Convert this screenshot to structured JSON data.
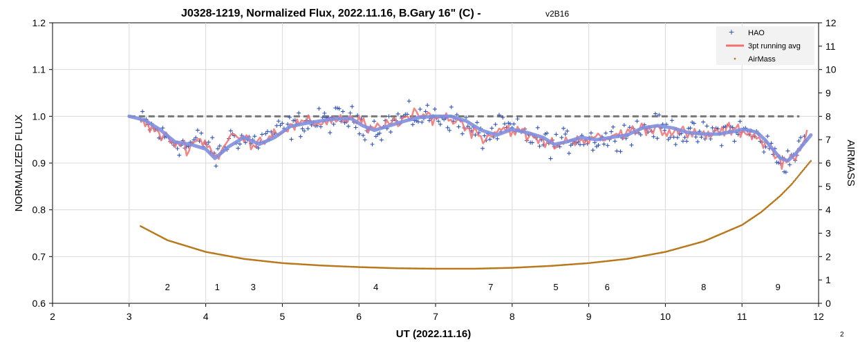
{
  "chart_data": {
    "type": "scatter",
    "title": "J0328-1219, Normalized Flux, 2022.11.16, B.Gary 16\" (C) -",
    "version": "v2B16",
    "xlabel": "UT (2022.11.16)",
    "ylabel": "NORMALIZED FLUX",
    "y2label": "AIRMASS",
    "xlim": [
      2,
      12
    ],
    "ylim": [
      0.6,
      1.2
    ],
    "y2lim": [
      0,
      12
    ],
    "x_ticks": [
      "2",
      "3",
      "4",
      "5",
      "6",
      "7",
      "8",
      "9",
      "10",
      "11",
      "12"
    ],
    "y_ticks": [
      "0.6",
      "0.7",
      "0.8",
      "0.9",
      "1.0",
      "1.1",
      "1.2"
    ],
    "y2_ticks": [
      "0",
      "1",
      "2",
      "3",
      "4",
      "5",
      "6",
      "7",
      "8",
      "9",
      "10",
      "11",
      "12"
    ],
    "grid": true,
    "legend_position": "top-right",
    "legend": [
      "HAO",
      "3pt running avg",
      "AirMass"
    ],
    "reference_line": {
      "y": 1.0,
      "x_range": [
        3.0,
        11.75
      ]
    },
    "series": [
      {
        "name": "HAO",
        "kind": "markers",
        "color": "#3355bb",
        "noise": 0.04,
        "x": [
          3.15,
          3.3,
          3.45,
          3.6,
          3.75,
          3.9,
          4.05,
          4.12,
          4.2,
          4.35,
          4.5,
          4.65,
          4.8,
          4.95,
          5.1,
          5.25,
          5.4,
          5.55,
          5.7,
          5.85,
          6.0,
          6.15,
          6.3,
          6.45,
          6.6,
          6.75,
          6.9,
          7.05,
          7.2,
          7.35,
          7.5,
          7.65,
          7.8,
          7.95,
          8.1,
          8.25,
          8.4,
          8.55,
          8.7,
          8.85,
          9.0,
          9.15,
          9.3,
          9.45,
          9.6,
          9.75,
          9.9,
          10.05,
          10.2,
          10.35,
          10.5,
          10.65,
          10.8,
          10.95,
          11.1,
          11.25,
          11.4,
          11.5,
          11.6,
          11.75,
          11.85
        ],
        "y": [
          0.99,
          0.975,
          0.955,
          0.945,
          0.935,
          0.95,
          0.94,
          0.91,
          0.925,
          0.96,
          0.95,
          0.945,
          0.955,
          0.97,
          0.975,
          0.985,
          0.985,
          0.99,
          0.995,
          0.995,
          0.99,
          0.97,
          0.975,
          0.99,
          0.995,
          1.0,
          1.0,
          1.0,
          0.995,
          0.985,
          0.965,
          0.955,
          0.97,
          0.975,
          0.965,
          0.955,
          0.945,
          0.94,
          0.945,
          0.955,
          0.95,
          0.95,
          0.955,
          0.965,
          0.97,
          0.975,
          0.975,
          0.97,
          0.965,
          0.96,
          0.96,
          0.965,
          0.97,
          0.97,
          0.965,
          0.95,
          0.925,
          0.905,
          0.905,
          0.93,
          0.955
        ]
      },
      {
        "name": "3pt running avg",
        "kind": "line",
        "color": "#f07070",
        "noise": 0.022,
        "x": [
          3.15,
          3.3,
          3.45,
          3.6,
          3.75,
          3.9,
          4.05,
          4.12,
          4.2,
          4.35,
          4.5,
          4.65,
          4.8,
          4.95,
          5.1,
          5.25,
          5.4,
          5.55,
          5.7,
          5.85,
          6.0,
          6.15,
          6.3,
          6.45,
          6.6,
          6.75,
          6.9,
          7.05,
          7.2,
          7.35,
          7.5,
          7.65,
          7.8,
          7.95,
          8.1,
          8.25,
          8.4,
          8.55,
          8.7,
          8.85,
          9.0,
          9.15,
          9.3,
          9.45,
          9.6,
          9.75,
          9.9,
          10.05,
          10.2,
          10.35,
          10.5,
          10.65,
          10.8,
          10.95,
          11.1,
          11.25,
          11.4,
          11.5,
          11.6,
          11.75,
          11.85
        ],
        "y": [
          0.99,
          0.975,
          0.955,
          0.945,
          0.935,
          0.95,
          0.94,
          0.91,
          0.925,
          0.96,
          0.95,
          0.945,
          0.955,
          0.97,
          0.975,
          0.985,
          0.985,
          0.99,
          0.995,
          0.995,
          0.99,
          0.97,
          0.975,
          0.99,
          0.995,
          1.0,
          1.0,
          1.0,
          0.995,
          0.985,
          0.965,
          0.955,
          0.97,
          0.975,
          0.965,
          0.955,
          0.945,
          0.94,
          0.945,
          0.955,
          0.95,
          0.95,
          0.955,
          0.965,
          0.97,
          0.975,
          0.975,
          0.97,
          0.965,
          0.96,
          0.96,
          0.965,
          0.97,
          0.97,
          0.965,
          0.95,
          0.925,
          0.905,
          0.905,
          0.93,
          0.955
        ]
      },
      {
        "name": "",
        "kind": "smooth",
        "color": "#7f8fdf",
        "x": [
          3.0,
          3.2,
          3.4,
          3.6,
          3.8,
          4.0,
          4.12,
          4.3,
          4.5,
          4.7,
          4.9,
          5.1,
          5.3,
          5.5,
          5.7,
          5.9,
          6.05,
          6.2,
          6.4,
          6.6,
          6.8,
          7.0,
          7.2,
          7.4,
          7.6,
          7.8,
          8.0,
          8.2,
          8.4,
          8.55,
          8.7,
          8.9,
          9.1,
          9.3,
          9.5,
          9.7,
          9.9,
          10.1,
          10.3,
          10.5,
          10.7,
          10.9,
          11.0,
          11.1,
          11.2,
          11.3,
          11.4,
          11.5,
          11.6,
          11.7,
          11.8,
          11.9
        ],
        "y": [
          1.0,
          0.992,
          0.972,
          0.945,
          0.94,
          0.93,
          0.91,
          0.935,
          0.955,
          0.94,
          0.955,
          0.978,
          0.985,
          0.99,
          0.995,
          0.995,
          0.98,
          0.97,
          0.98,
          0.99,
          0.998,
          1.0,
          1.0,
          0.99,
          0.97,
          0.96,
          0.972,
          0.965,
          0.955,
          0.94,
          0.945,
          0.955,
          0.95,
          0.955,
          0.96,
          0.975,
          0.98,
          0.975,
          0.965,
          0.962,
          0.962,
          0.968,
          0.972,
          0.97,
          0.965,
          0.95,
          0.93,
          0.91,
          0.905,
          0.92,
          0.94,
          0.96
        ]
      },
      {
        "name": "AirMass",
        "kind": "dots",
        "color": "#b8781c",
        "x": [
          3.15,
          3.5,
          4.0,
          4.5,
          5.0,
          5.5,
          6.0,
          6.5,
          7.0,
          7.5,
          8.0,
          8.5,
          9.0,
          9.5,
          10.0,
          10.5,
          11.0,
          11.25,
          11.5,
          11.65,
          11.8,
          11.9
        ],
        "y": [
          3.3,
          2.7,
          2.2,
          1.9,
          1.72,
          1.62,
          1.55,
          1.5,
          1.48,
          1.48,
          1.52,
          1.6,
          1.72,
          1.9,
          2.2,
          2.65,
          3.35,
          3.9,
          4.6,
          5.1,
          5.7,
          6.1
        ]
      }
    ],
    "annotations": [
      {
        "text": "2",
        "x": 3.5
      },
      {
        "text": "1",
        "x": 4.15
      },
      {
        "text": "3",
        "x": 4.62
      },
      {
        "text": "4",
        "x": 6.22
      },
      {
        "text": "7",
        "x": 7.72
      },
      {
        "text": "5",
        "x": 8.57
      },
      {
        "text": "6",
        "x": 9.24
      },
      {
        "text": "8",
        "x": 10.5
      },
      {
        "text": "9",
        "x": 11.47
      }
    ],
    "page_number": "2"
  }
}
